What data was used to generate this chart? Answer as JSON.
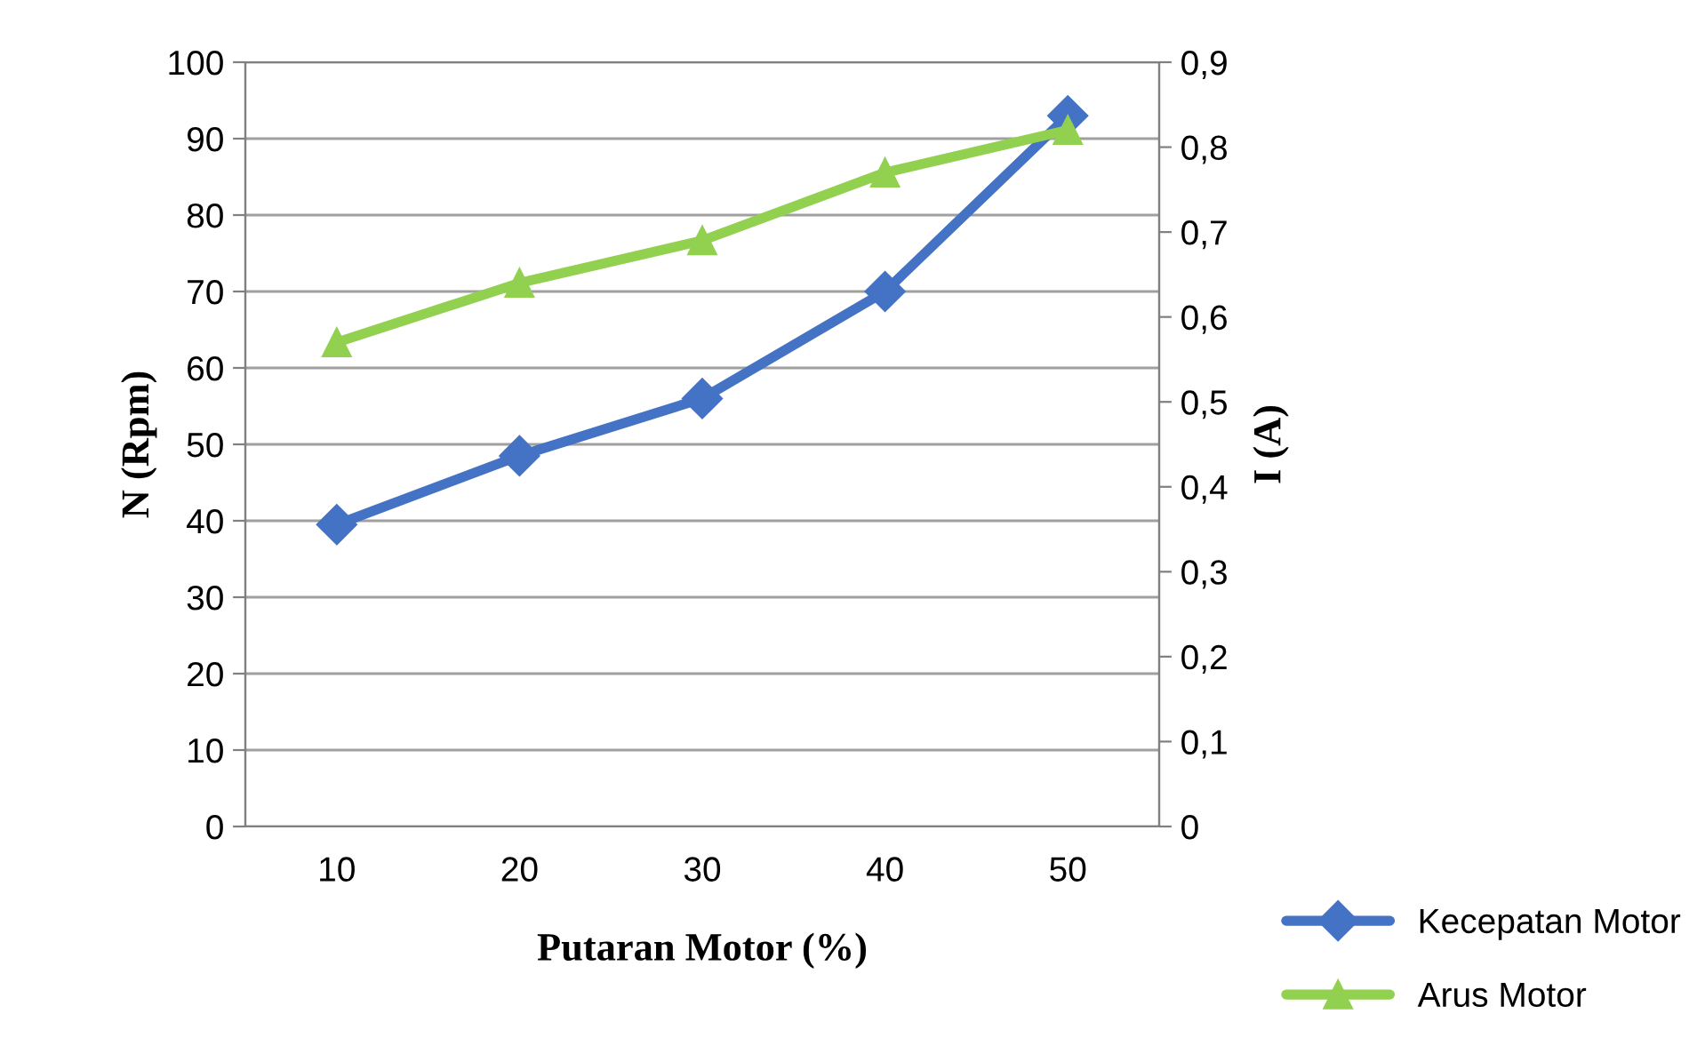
{
  "chart_data": {
    "type": "line",
    "xlabel": "Putaran Motor (%)",
    "ylabel": "N (Rpm)",
    "y2label": "I (A)",
    "categories": [
      "10",
      "20",
      "30",
      "40",
      "50"
    ],
    "series": [
      {
        "name": "Kecepatan Motor",
        "color": "#4472c4",
        "marker": "diamond",
        "values": [
          39.5,
          48.5,
          56,
          70,
          93
        ]
      },
      {
        "name": "Arus Motor",
        "color": "#92d050",
        "marker": "triangle",
        "axis": "y2",
        "values": [
          0.57,
          0.64,
          0.69,
          0.77,
          0.82
        ]
      }
    ],
    "ylim": [
      0,
      100
    ],
    "yticks": [
      0,
      10,
      20,
      30,
      40,
      50,
      60,
      70,
      80,
      90,
      100
    ],
    "y2lim": [
      0,
      0.9
    ],
    "y2ticks": [
      {
        "value": 0,
        "label": "0"
      },
      {
        "value": 0.1,
        "label": "0,1"
      },
      {
        "value": 0.2,
        "label": "0,2"
      },
      {
        "value": 0.3,
        "label": "0,3"
      },
      {
        "value": 0.4,
        "label": "0,4"
      },
      {
        "value": 0.5,
        "label": "0,5"
      },
      {
        "value": 0.6,
        "label": "0,6"
      },
      {
        "value": 0.7,
        "label": "0,7"
      },
      {
        "value": 0.8,
        "label": "0,8"
      },
      {
        "value": 0.9,
        "label": "0,9"
      }
    ],
    "grid": "y",
    "legend": "bottom right",
    "line_style": "solid"
  }
}
